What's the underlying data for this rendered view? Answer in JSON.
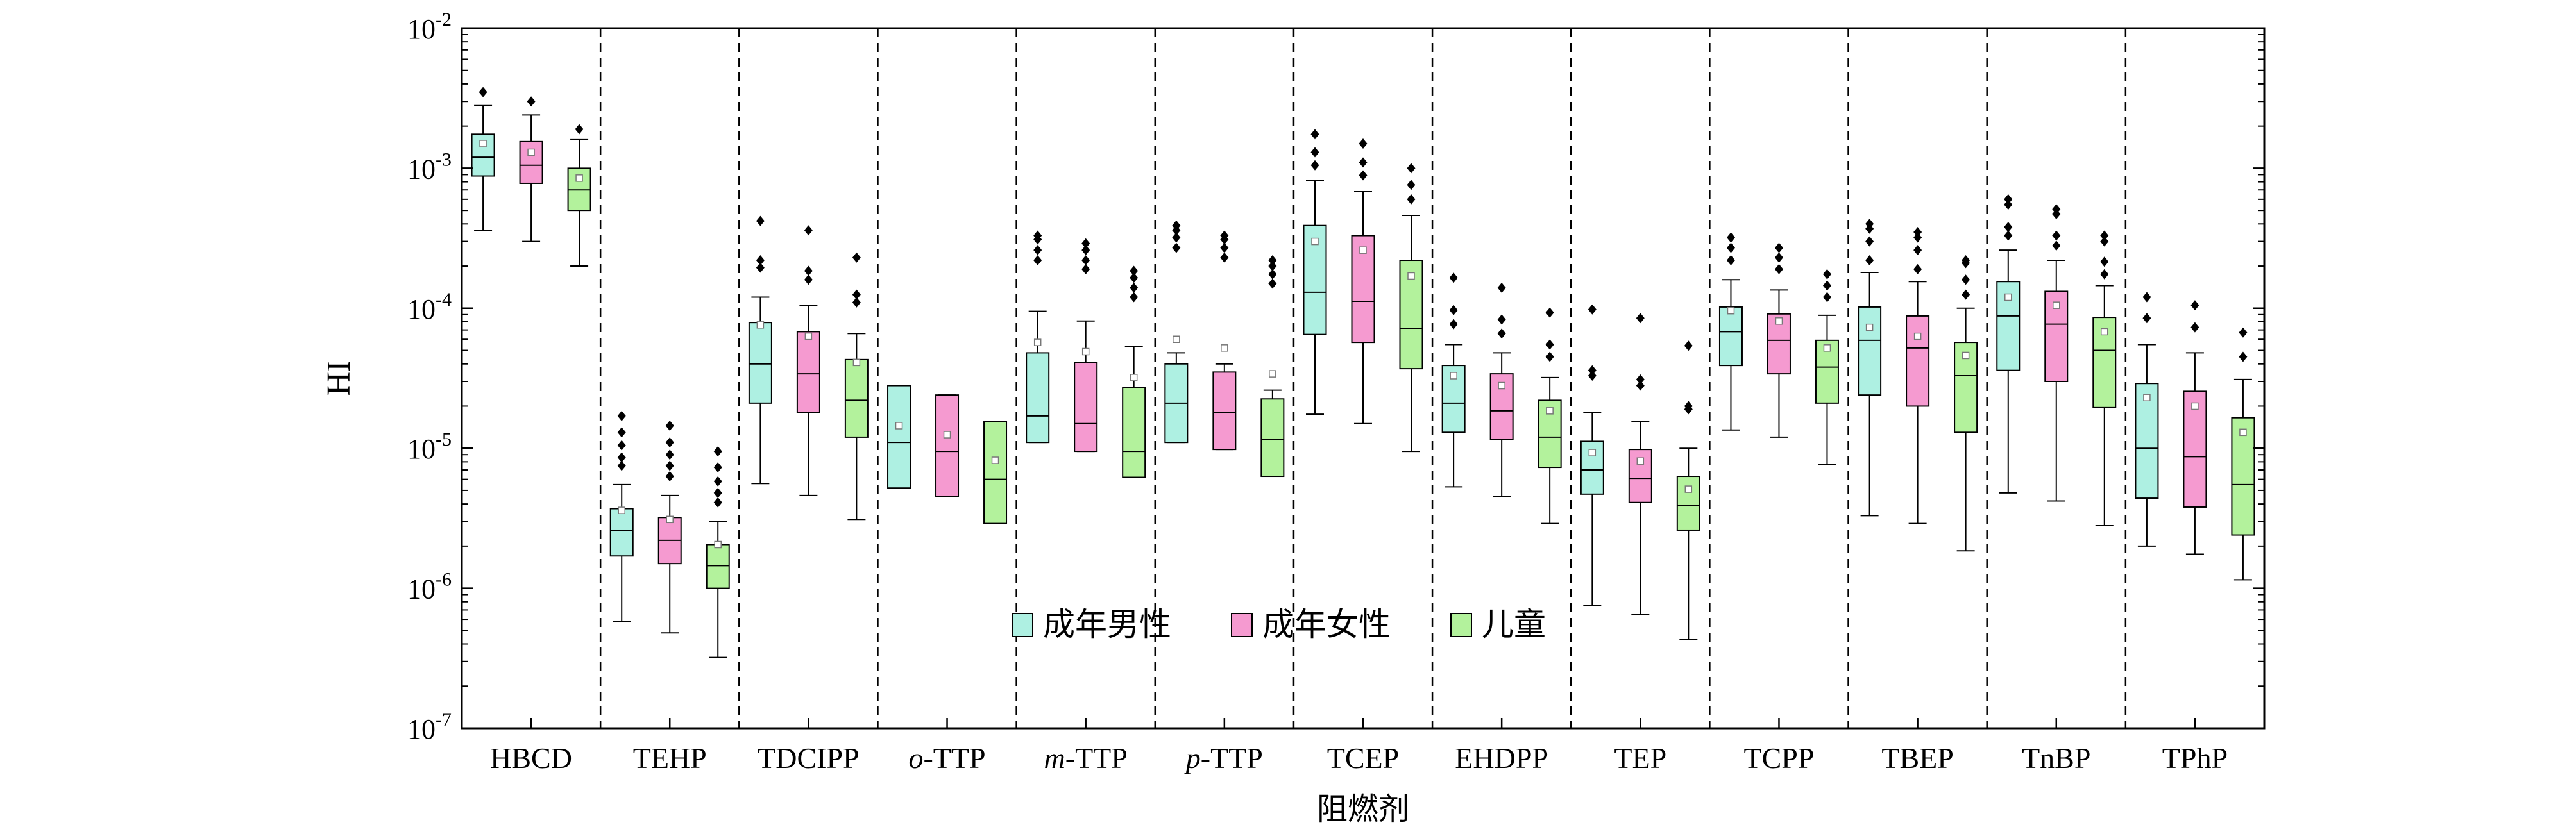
{
  "chart_data": {
    "type": "box",
    "ylabel": "HI",
    "xlabel": "阻燃剂",
    "yscale": "log",
    "ylim": [
      1e-07,
      0.01
    ],
    "y_tick_labels": [
      {
        "base": "10",
        "exp": "-7"
      },
      {
        "base": "10",
        "exp": "-6"
      },
      {
        "base": "10",
        "exp": "-5"
      },
      {
        "base": "10",
        "exp": "-4"
      },
      {
        "base": "10",
        "exp": "-3"
      },
      {
        "base": "10",
        "exp": "-2"
      }
    ],
    "legend_position": "bottom-center",
    "categories": [
      {
        "pre": "",
        "ital": "",
        "post": "HBCD"
      },
      {
        "pre": "",
        "ital": "",
        "post": "TEHP"
      },
      {
        "pre": "",
        "ital": "",
        "post": "TDCIPP"
      },
      {
        "pre": "",
        "ital": "o",
        "post": "-TTP"
      },
      {
        "pre": "",
        "ital": "m",
        "post": "-TTP"
      },
      {
        "pre": "",
        "ital": "p",
        "post": "-TTP"
      },
      {
        "pre": "",
        "ital": "",
        "post": "TCEP"
      },
      {
        "pre": "",
        "ital": "",
        "post": "EHDPP"
      },
      {
        "pre": "",
        "ital": "",
        "post": "TEP"
      },
      {
        "pre": "",
        "ital": "",
        "post": "TCPP"
      },
      {
        "pre": "",
        "ital": "",
        "post": "TBEP"
      },
      {
        "pre": "",
        "ital": "",
        "post": "TnBP"
      },
      {
        "pre": "",
        "ital": "",
        "post": "TPhP"
      }
    ],
    "series": [
      {
        "name": "成年男性",
        "color": "#aef0e2",
        "boxes": [
          {
            "whislo": 0.00036,
            "q1": 0.00088,
            "med": 0.0012,
            "q3": 0.00175,
            "whishi": 0.0028,
            "mean": 0.0015,
            "fliers": [
              0.0035
            ]
          },
          {
            "whislo": 5.8e-07,
            "q1": 1.7e-06,
            "med": 2.6e-06,
            "q3": 3.7e-06,
            "whishi": 5.5e-06,
            "mean": 3.6e-06,
            "fliers": [
              7.5e-06,
              8.6e-06,
              1.05e-05,
              1.3e-05,
              1.7e-05
            ]
          },
          {
            "whislo": 5.6e-06,
            "q1": 2.1e-05,
            "med": 4e-05,
            "q3": 7.9e-05,
            "whishi": 0.00012,
            "mean": 7.6e-05,
            "fliers": [
              0.000195,
              0.00022,
              0.00042
            ]
          },
          {
            "whislo": 5.2e-06,
            "q1": 5.2e-06,
            "med": 1.1e-05,
            "q3": 2.8e-05,
            "whishi": 2.8e-05,
            "mean": 1.45e-05,
            "fliers": []
          },
          {
            "whislo": 1.1e-05,
            "q1": 1.1e-05,
            "med": 1.7e-05,
            "q3": 4.8e-05,
            "whishi": 9.5e-05,
            "mean": 5.7e-05,
            "fliers": [
              0.00022,
              0.00026,
              0.00031,
              0.00033
            ]
          },
          {
            "whislo": 1.1e-05,
            "q1": 1.1e-05,
            "med": 2.1e-05,
            "q3": 4e-05,
            "whishi": 4.8e-05,
            "mean": 6e-05,
            "fliers": [
              0.00027,
              0.00032,
              0.00036,
              0.00039
            ]
          },
          {
            "whislo": 1.75e-05,
            "q1": 6.5e-05,
            "med": 0.00013,
            "q3": 0.00039,
            "whishi": 0.00082,
            "mean": 0.0003,
            "fliers": [
              0.00105,
              0.0013,
              0.00175
            ]
          },
          {
            "whislo": 5.3e-06,
            "q1": 1.3e-05,
            "med": 2.1e-05,
            "q3": 3.9e-05,
            "whishi": 5.5e-05,
            "mean": 3.3e-05,
            "fliers": [
              7.7e-05,
              9.7e-05,
              0.000165
            ]
          },
          {
            "whislo": 7.5e-07,
            "q1": 4.7e-06,
            "med": 7e-06,
            "q3": 1.12e-05,
            "whishi": 1.8e-05,
            "mean": 9.3e-06,
            "fliers": [
              3.3e-05,
              3.6e-05,
              9.8e-05
            ]
          },
          {
            "whislo": 1.35e-05,
            "q1": 3.9e-05,
            "med": 6.8e-05,
            "q3": 0.000102,
            "whishi": 0.00016,
            "mean": 9.6e-05,
            "fliers": [
              0.00022,
              0.00027,
              0.00032
            ]
          },
          {
            "whislo": 3.3e-06,
            "q1": 2.4e-05,
            "med": 5.9e-05,
            "q3": 0.000102,
            "whishi": 0.00018,
            "mean": 7.3e-05,
            "fliers": [
              0.00022,
              0.0003,
              0.00037,
              0.0004
            ]
          },
          {
            "whislo": 4.8e-06,
            "q1": 3.6e-05,
            "med": 8.8e-05,
            "q3": 0.000155,
            "whishi": 0.00026,
            "mean": 0.00012,
            "fliers": [
              0.00033,
              0.00038,
              0.00055,
              0.0006
            ]
          },
          {
            "whislo": 2e-06,
            "q1": 4.4e-06,
            "med": 1e-05,
            "q3": 2.9e-05,
            "whishi": 5.5e-05,
            "mean": 2.3e-05,
            "fliers": [
              8.5e-05,
              0.00012
            ]
          }
        ]
      },
      {
        "name": "成年女性",
        "color": "#f59ad0",
        "boxes": [
          {
            "whislo": 0.0003,
            "q1": 0.00078,
            "med": 0.00105,
            "q3": 0.00155,
            "whishi": 0.0024,
            "mean": 0.0013,
            "fliers": [
              0.003
            ]
          },
          {
            "whislo": 4.8e-07,
            "q1": 1.5e-06,
            "med": 2.2e-06,
            "q3": 3.2e-06,
            "whishi": 4.6e-06,
            "mean": 3.1e-06,
            "fliers": [
              6.3e-06,
              7.5e-06,
              9e-06,
              1.1e-05,
              1.45e-05
            ]
          },
          {
            "whislo": 4.6e-06,
            "q1": 1.8e-05,
            "med": 3.4e-05,
            "q3": 6.8e-05,
            "whishi": 0.000105,
            "mean": 6.3e-05,
            "fliers": [
              0.00016,
              0.000185,
              0.00036
            ]
          },
          {
            "whislo": 4.5e-06,
            "q1": 4.5e-06,
            "med": 9.5e-06,
            "q3": 2.4e-05,
            "whishi": 2.4e-05,
            "mean": 1.25e-05,
            "fliers": []
          },
          {
            "whislo": 9.5e-06,
            "q1": 9.5e-06,
            "med": 1.5e-05,
            "q3": 4.1e-05,
            "whishi": 8.1e-05,
            "mean": 4.9e-05,
            "fliers": [
              0.00019,
              0.00022,
              0.00026,
              0.00029
            ]
          },
          {
            "whislo": 9.8e-06,
            "q1": 9.8e-06,
            "med": 1.8e-05,
            "q3": 3.5e-05,
            "whishi": 4e-05,
            "mean": 5.2e-05,
            "fliers": [
              0.00023,
              0.00027,
              0.00031,
              0.00033
            ]
          },
          {
            "whislo": 1.5e-05,
            "q1": 5.7e-05,
            "med": 0.000112,
            "q3": 0.00033,
            "whishi": 0.00068,
            "mean": 0.00026,
            "fliers": [
              0.00089,
              0.0011,
              0.0015
            ]
          },
          {
            "whislo": 4.5e-06,
            "q1": 1.15e-05,
            "med": 1.85e-05,
            "q3": 3.4e-05,
            "whishi": 4.8e-05,
            "mean": 2.8e-05,
            "fliers": [
              6.6e-05,
              8.3e-05,
              0.00014
            ]
          },
          {
            "whislo": 6.5e-07,
            "q1": 4.1e-06,
            "med": 6.1e-06,
            "q3": 9.8e-06,
            "whishi": 1.55e-05,
            "mean": 8.1e-06,
            "fliers": [
              2.8e-05,
              3.1e-05,
              8.5e-05
            ]
          },
          {
            "whislo": 1.2e-05,
            "q1": 3.4e-05,
            "med": 5.9e-05,
            "q3": 9.1e-05,
            "whishi": 0.000135,
            "mean": 8.1e-05,
            "fliers": [
              0.00019,
              0.00023,
              0.00027
            ]
          },
          {
            "whislo": 2.9e-06,
            "q1": 2e-05,
            "med": 5.2e-05,
            "q3": 8.8e-05,
            "whishi": 0.000155,
            "mean": 6.3e-05,
            "fliers": [
              0.00019,
              0.00026,
              0.00032,
              0.00035
            ]
          },
          {
            "whislo": 4.2e-06,
            "q1": 3e-05,
            "med": 7.7e-05,
            "q3": 0.000132,
            "whishi": 0.00022,
            "mean": 0.000105,
            "fliers": [
              0.00028,
              0.00033,
              0.00047,
              0.00051
            ]
          },
          {
            "whislo": 1.75e-06,
            "q1": 3.8e-06,
            "med": 8.7e-06,
            "q3": 2.55e-05,
            "whishi": 4.8e-05,
            "mean": 2e-05,
            "fliers": [
              7.3e-05,
              0.000105
            ]
          }
        ]
      },
      {
        "name": "儿童",
        "color": "#b3f29c",
        "boxes": [
          {
            "whislo": 0.0002,
            "q1": 0.0005,
            "med": 0.0007,
            "q3": 0.001,
            "whishi": 0.0016,
            "mean": 0.00085,
            "fliers": [
              0.0019
            ]
          },
          {
            "whislo": 3.2e-07,
            "q1": 1e-06,
            "med": 1.45e-06,
            "q3": 2.05e-06,
            "whishi": 3e-06,
            "mean": 2.05e-06,
            "fliers": [
              4.1e-06,
              4.8e-06,
              5.8e-06,
              7.3e-06,
              9.5e-06
            ]
          },
          {
            "whislo": 3.1e-06,
            "q1": 1.2e-05,
            "med": 2.2e-05,
            "q3": 4.3e-05,
            "whishi": 6.6e-05,
            "mean": 4.1e-05,
            "fliers": [
              0.00011,
              0.000125,
              0.00023
            ]
          },
          {
            "whislo": 2.9e-06,
            "q1": 2.9e-06,
            "med": 6e-06,
            "q3": 1.55e-05,
            "whishi": 1.55e-05,
            "mean": 8.2e-06,
            "fliers": []
          },
          {
            "whislo": 6.2e-06,
            "q1": 6.2e-06,
            "med": 9.5e-06,
            "q3": 2.7e-05,
            "whishi": 5.3e-05,
            "mean": 3.2e-05,
            "fliers": [
              0.00012,
              0.00014,
              0.000165,
              0.000185
            ]
          },
          {
            "whislo": 6.3e-06,
            "q1": 6.3e-06,
            "med": 1.15e-05,
            "q3": 2.25e-05,
            "whishi": 2.6e-05,
            "mean": 3.4e-05,
            "fliers": [
              0.00015,
              0.000175,
              0.0002,
              0.00022
            ]
          },
          {
            "whislo": 9.5e-06,
            "q1": 3.7e-05,
            "med": 7.2e-05,
            "q3": 0.00022,
            "whishi": 0.00046,
            "mean": 0.00017,
            "fliers": [
              0.0006,
              0.00076,
              0.001
            ]
          },
          {
            "whislo": 2.9e-06,
            "q1": 7.3e-06,
            "med": 1.2e-05,
            "q3": 2.2e-05,
            "whishi": 3.2e-05,
            "mean": 1.85e-05,
            "fliers": [
              4.5e-05,
              5.5e-05,
              9.3e-05
            ]
          },
          {
            "whislo": 4.3e-07,
            "q1": 2.6e-06,
            "med": 3.9e-06,
            "q3": 6.3e-06,
            "whishi": 1e-05,
            "mean": 5.1e-06,
            "fliers": [
              1.9e-05,
              2e-05,
              5.4e-05
            ]
          },
          {
            "whislo": 7.7e-06,
            "q1": 2.1e-05,
            "med": 3.8e-05,
            "q3": 5.9e-05,
            "whishi": 8.9e-05,
            "mean": 5.2e-05,
            "fliers": [
              0.00012,
              0.000145,
              0.000175
            ]
          },
          {
            "whislo": 1.85e-06,
            "q1": 1.3e-05,
            "med": 3.3e-05,
            "q3": 5.7e-05,
            "whishi": 0.0001,
            "mean": 4.6e-05,
            "fliers": [
              0.000125,
              0.00016,
              0.00021,
              0.00022
            ]
          },
          {
            "whislo": 2.8e-06,
            "q1": 1.95e-05,
            "med": 5e-05,
            "q3": 8.6e-05,
            "whishi": 0.000145,
            "mean": 6.8e-05,
            "fliers": [
              0.000175,
              0.000215,
              0.0003,
              0.00033
            ]
          },
          {
            "whislo": 1.15e-06,
            "q1": 2.4e-06,
            "med": 5.5e-06,
            "q3": 1.65e-05,
            "whishi": 3.1e-05,
            "mean": 1.3e-05,
            "fliers": [
              4.5e-05,
              6.7e-05
            ]
          }
        ]
      }
    ]
  }
}
